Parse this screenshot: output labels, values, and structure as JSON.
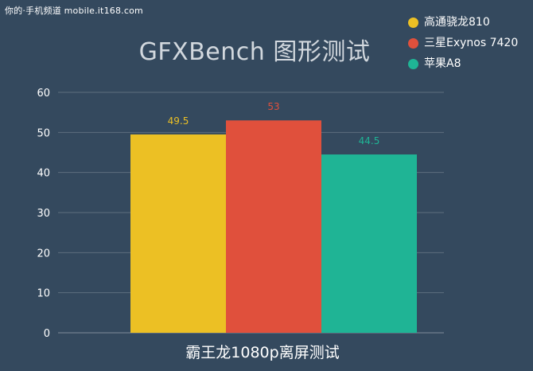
{
  "watermark": "你的·手机频道 mobile.it168.com",
  "chart_data": {
    "type": "bar",
    "title": "GFXBench 图形测试",
    "xlabel": "霸王龙1080p离屏测试",
    "ylabel": "",
    "ylim": [
      0,
      60
    ],
    "yticks": [
      0,
      10,
      20,
      30,
      40,
      50,
      60
    ],
    "grid": true,
    "legend_position": "top-right",
    "categories": [
      "霸王龙1080p离屏测试"
    ],
    "series": [
      {
        "name": "高通骁龙810",
        "values": [
          49.5
        ],
        "value_label": "49.5",
        "color": "#ecc024"
      },
      {
        "name": "三星Exynos 7420",
        "values": [
          53
        ],
        "value_label": "53",
        "color": "#e0503c"
      },
      {
        "name": "苹果A8",
        "values": [
          44.5
        ],
        "value_label": "44.5",
        "color": "#1fb495"
      }
    ]
  }
}
